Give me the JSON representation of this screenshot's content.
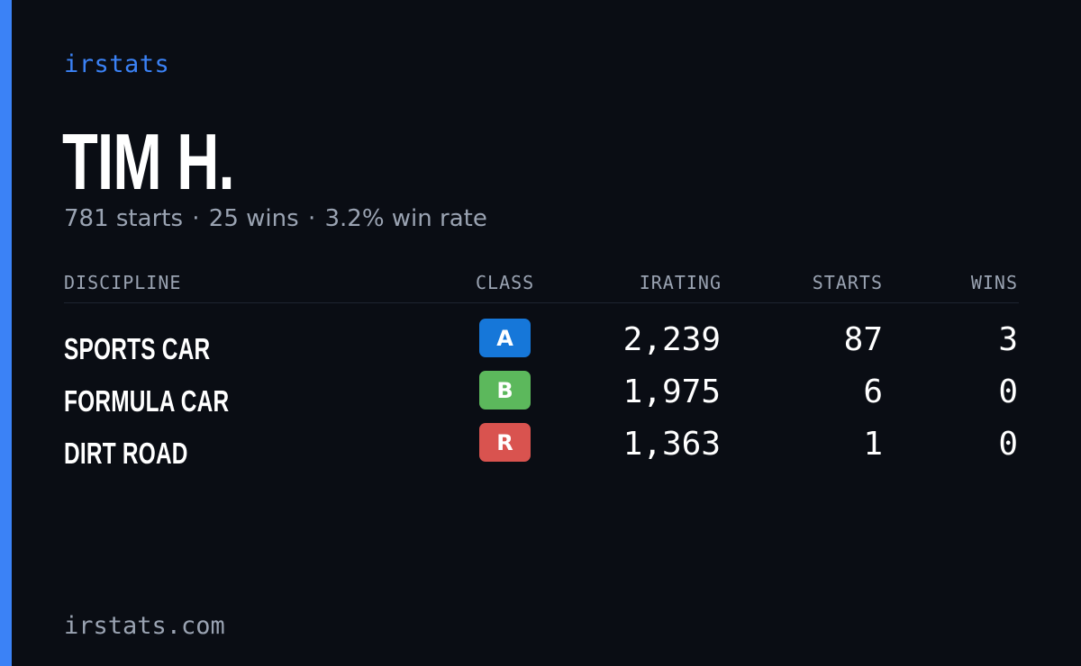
{
  "brand": "irstats",
  "driver": {
    "name": "TIM H.",
    "starts_text": "781 starts",
    "wins_text": "25 wins",
    "win_rate_text": "3.2% win rate",
    "separator": "·"
  },
  "table": {
    "headers": {
      "discipline": "DISCIPLINE",
      "class": "CLASS",
      "irating": "IRATING",
      "starts": "STARTS",
      "wins": "WINS"
    },
    "rows": [
      {
        "discipline": "SPORTS CAR",
        "class": "A",
        "class_color": "#1677d9",
        "irating": "2,239",
        "starts": "87",
        "wins": "3"
      },
      {
        "discipline": "FORMULA CAR",
        "class": "B",
        "class_color": "#5cb85c",
        "irating": "1,975",
        "starts": "6",
        "wins": "0"
      },
      {
        "discipline": "DIRT ROAD",
        "class": "R",
        "class_color": "#d9534f",
        "irating": "1,363",
        "starts": "1",
        "wins": "0"
      }
    ]
  },
  "footer": {
    "url": "irstats.com"
  },
  "colors": {
    "background": "#0a0d14",
    "accent": "#3b82f6",
    "muted_text": "#9aa3b2"
  }
}
